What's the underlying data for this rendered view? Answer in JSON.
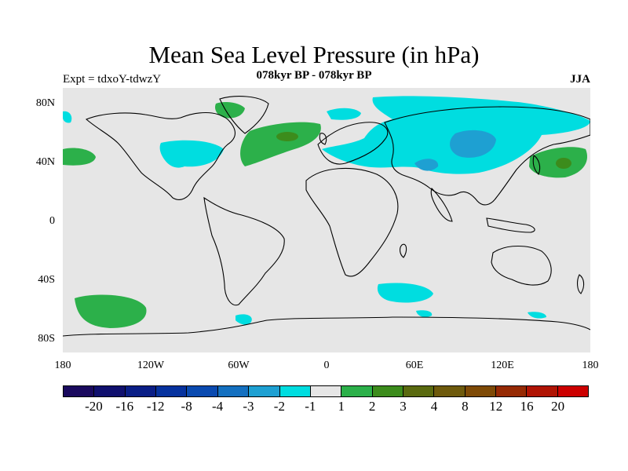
{
  "title": "Mean Sea Level Pressure (in hPa)",
  "subtitle": "078kyr BP - 078kyr BP",
  "left_label": "Expt = tdxoY-tdwzY",
  "right_label": "JJA",
  "y_ticks": [
    "80N",
    "40N",
    "0",
    "40S",
    "80S"
  ],
  "x_ticks": [
    "180",
    "120W",
    "60W",
    "0",
    "60E",
    "120E",
    "180"
  ],
  "colorbar": {
    "colors": [
      "#1a0a5e",
      "#10106e",
      "#0a1e86",
      "#06329e",
      "#0a4ab0",
      "#1470c0",
      "#1ea0d2",
      "#00dde0",
      "#e6e6e6",
      "#2cb04a",
      "#3c8c1c",
      "#5a6a10",
      "#6e5a0c",
      "#7e4a06",
      "#962a04",
      "#b01404",
      "#cc0000"
    ],
    "labels": [
      "-20",
      "-16",
      "-12",
      "-8",
      "-4",
      "-3",
      "-2",
      "-1",
      "1",
      "2",
      "3",
      "4",
      "8",
      "12",
      "16",
      "20"
    ]
  },
  "map": {
    "background": "#e6e6e6",
    "positive_color": "#2cb04a",
    "positive_dark_color": "#3c8c1c",
    "negative_color": "#00dde0",
    "negative_dark_color": "#1ea0d2"
  }
}
